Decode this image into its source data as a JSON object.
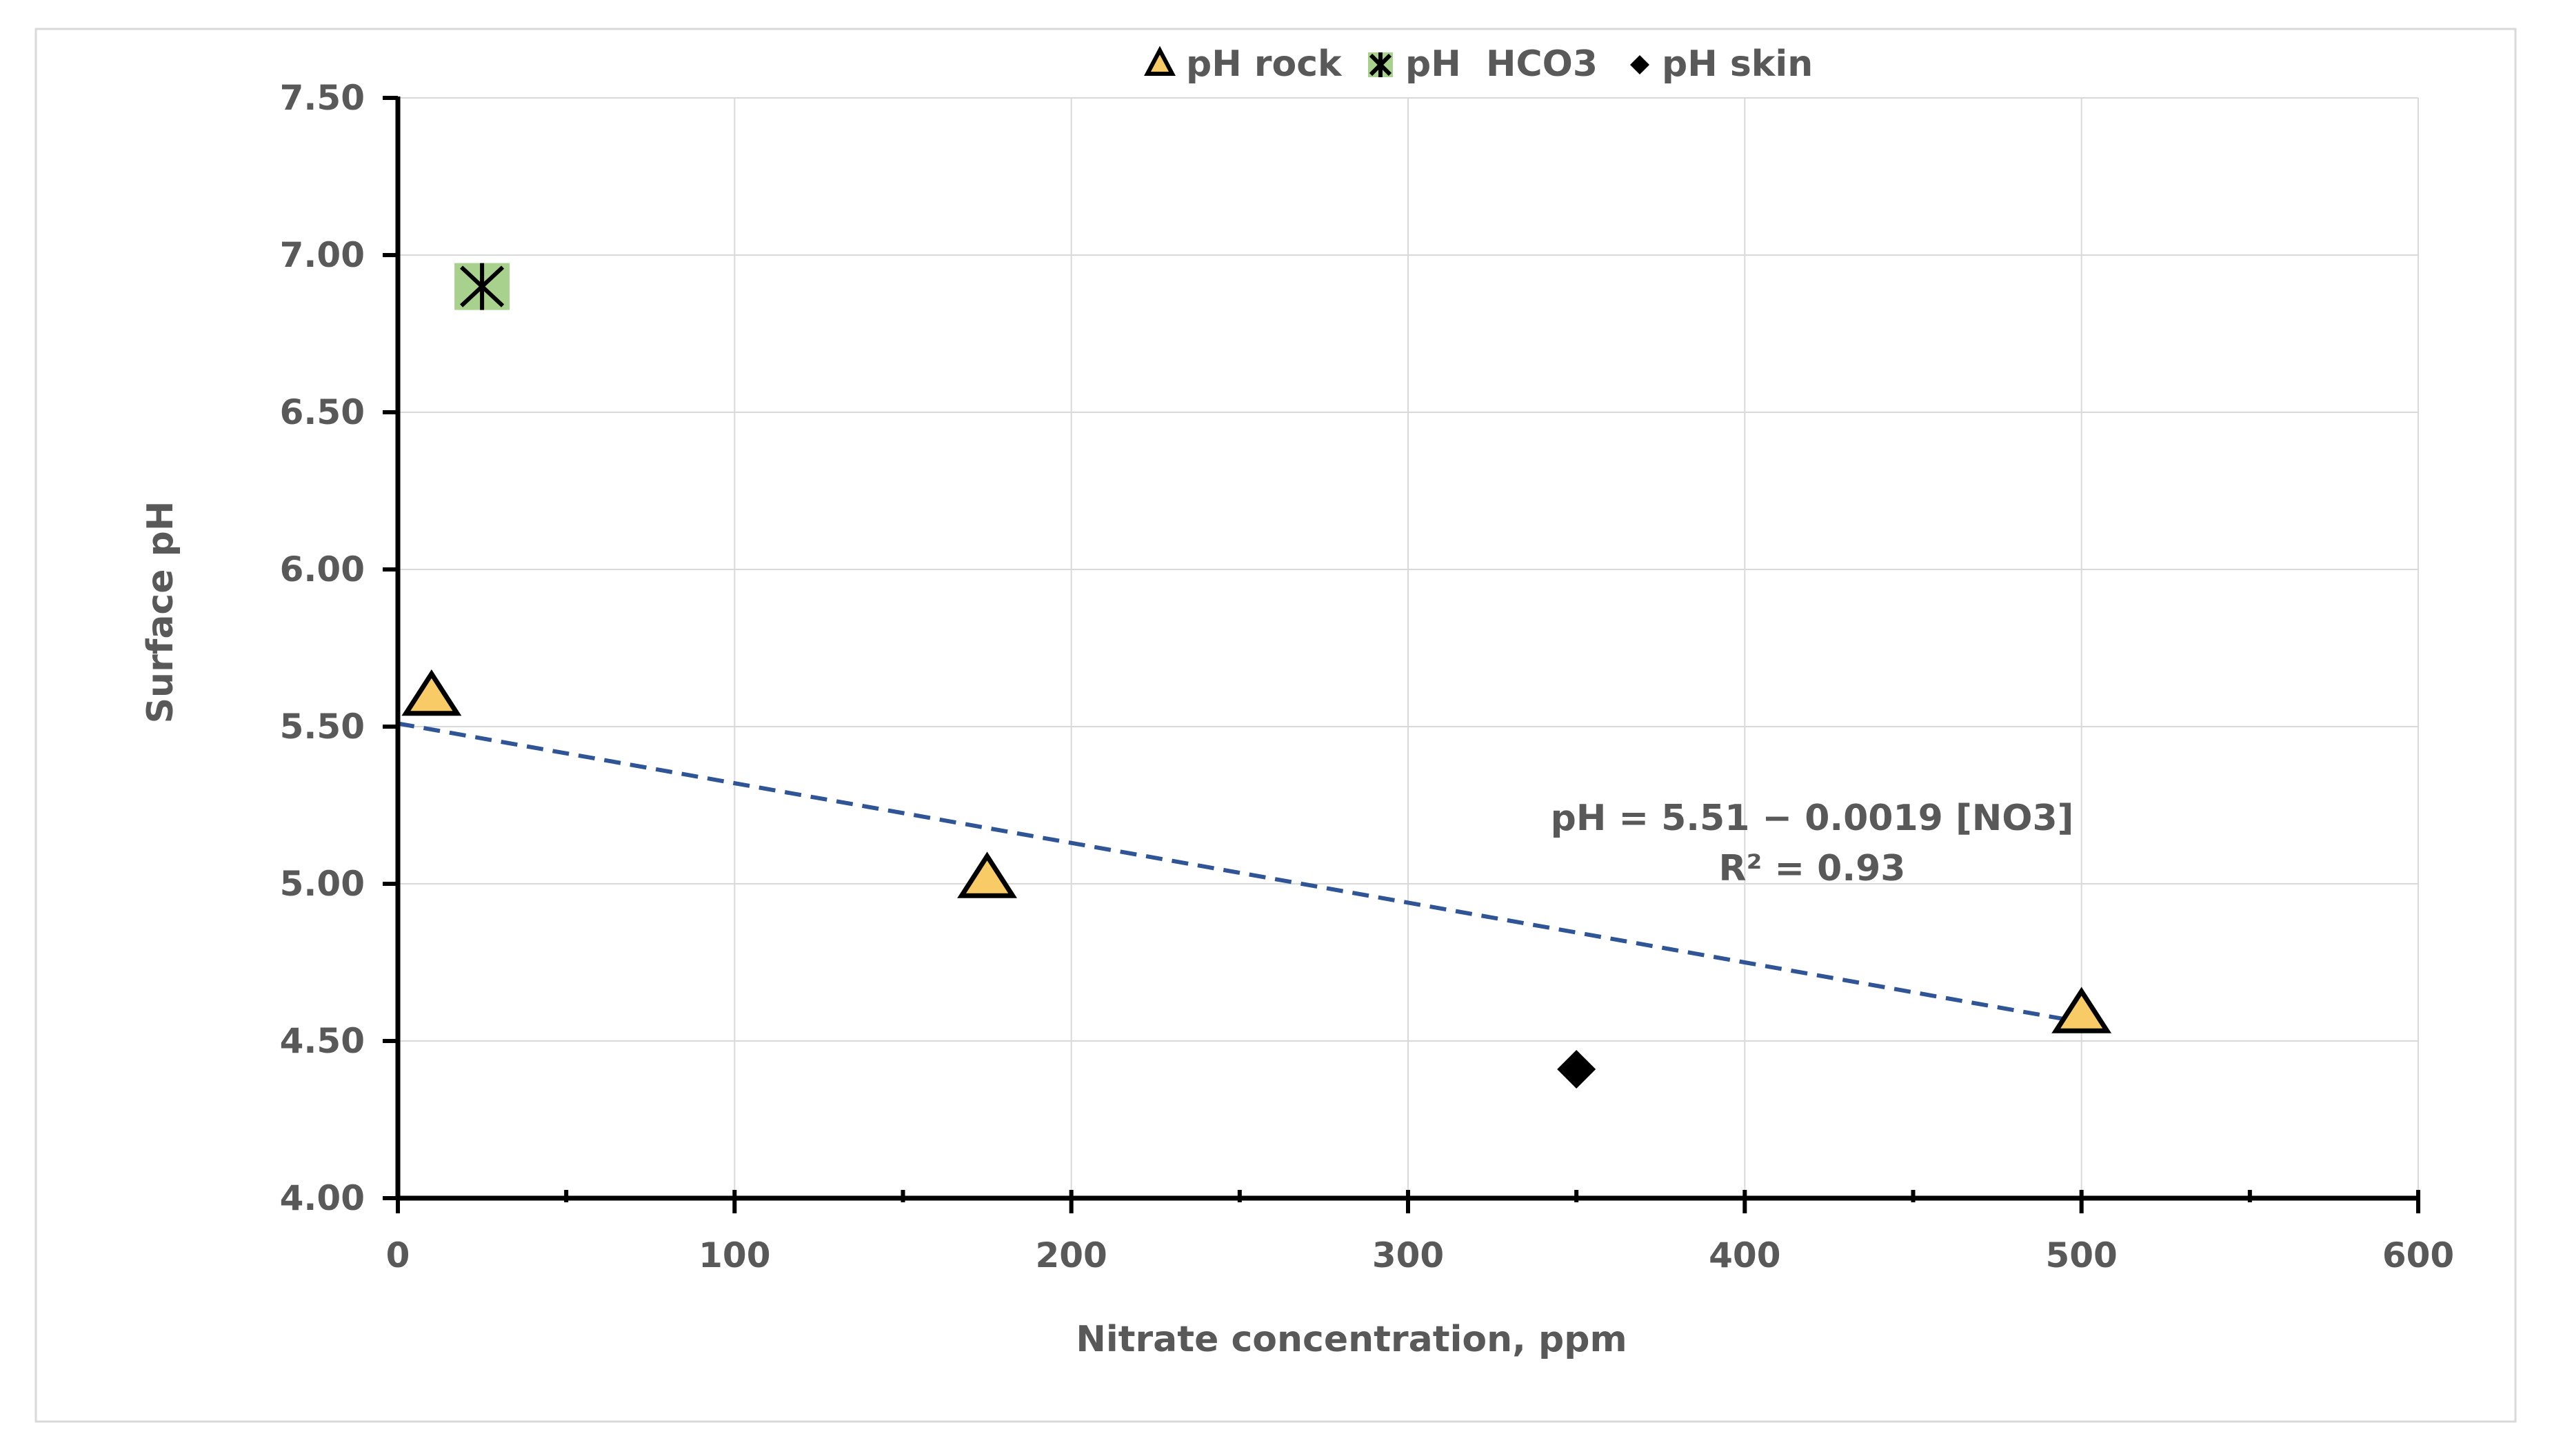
{
  "chart_data": {
    "type": "scatter",
    "xlabel": "Nitrate concentration, ppm",
    "ylabel": "Surface pH",
    "xlim": [
      0,
      600
    ],
    "ylim": [
      4.0,
      7.5
    ],
    "x_ticks": [
      0,
      100,
      200,
      300,
      400,
      500,
      600
    ],
    "x_tick_labels": [
      "0",
      "100",
      "200",
      "300",
      "400",
      "500",
      "600"
    ],
    "y_ticks": [
      4.0,
      4.5,
      5.0,
      5.5,
      6.0,
      6.5,
      7.0,
      7.5
    ],
    "y_tick_labels": [
      "4.00",
      "4.50",
      "5.00",
      "5.50",
      "6.00",
      "6.50",
      "7.00",
      "7.50"
    ],
    "x_minor_ticks": [
      50,
      150,
      250,
      350,
      450,
      550
    ],
    "grid": true,
    "legend_position": "top-center",
    "series": [
      {
        "name": "pH rock",
        "marker": "triangle",
        "color": "#F9CB67",
        "edge_color": "#000000",
        "points": [
          {
            "x": 10,
            "y": 5.6
          },
          {
            "x": 175,
            "y": 5.02
          },
          {
            "x": 500,
            "y": 4.59
          }
        ]
      },
      {
        "name": "pH  HCO3",
        "marker": "asterisk-box",
        "color": "#A9D18E",
        "edge_color": "#000000",
        "points": [
          {
            "x": 25,
            "y": 6.9
          }
        ]
      },
      {
        "name": "pH skin",
        "marker": "diamond",
        "color": "#000000",
        "edge_color": "#000000",
        "points": [
          {
            "x": 350,
            "y": 4.41
          }
        ]
      }
    ],
    "trendline": {
      "color": "#2F5597",
      "style": "dashed",
      "intercept": 5.51,
      "slope": -0.0019,
      "x_range": [
        0,
        500
      ]
    },
    "annotations": [
      {
        "text": "pH = 5.51 − 0.0019 [NO3]",
        "x": 420,
        "y": 5.21
      },
      {
        "text": "R² = 0.93",
        "x": 420,
        "y": 5.05
      }
    ]
  }
}
